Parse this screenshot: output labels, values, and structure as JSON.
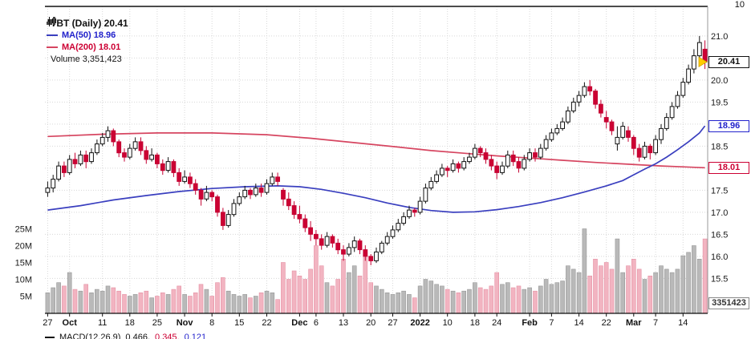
{
  "legend": {
    "symbol_label": "TBT (Daily) 20.41",
    "ma50_label": "MA(50) 18.96",
    "ma200_label": "MA(200) 18.01",
    "volume_label": "Volume 3,351,423"
  },
  "axes": {
    "top_partial_label": "10",
    "badges": {
      "last_price": "20.41",
      "ma50": "18.96",
      "ma200": "18.01",
      "volume": "3351423"
    }
  },
  "footer": {
    "label": "MACD(12,26,9)",
    "v1": "0.466,",
    "v2": "0.345,",
    "v3": "0.121"
  },
  "chart_data": {
    "type": "candlestick",
    "title": "TBT (Daily)",
    "symbol": "TBT",
    "timeframe": "Daily",
    "last_price": 20.41,
    "ma50": 18.96,
    "ma200": 18.01,
    "volume": 3351423,
    "legend_position": "top-left",
    "grid": true,
    "price_axis": {
      "min": 15.5,
      "max": 21.0,
      "step": 0.5,
      "visible_labels": [
        {
          "v": 21.0,
          "t": "21.0"
        },
        {
          "v": 20.0,
          "t": "20.0"
        },
        {
          "v": 19.5,
          "t": "19.5"
        },
        {
          "v": 18.5,
          "t": "18.5"
        },
        {
          "v": 17.5,
          "t": "17.5"
        },
        {
          "v": 17.0,
          "t": "17.0"
        },
        {
          "v": 16.5,
          "t": "16.5"
        },
        {
          "v": 16.0,
          "t": "16.0"
        },
        {
          "v": 15.5,
          "t": "15.5"
        }
      ]
    },
    "volume_axis": {
      "unit": "M",
      "ticks": [
        {
          "v": 25,
          "t": "25M"
        },
        {
          "v": 20,
          "t": "20M"
        },
        {
          "v": 15,
          "t": "15M"
        },
        {
          "v": 10,
          "t": "10M"
        },
        {
          "v": 5,
          "t": "5M"
        }
      ]
    },
    "x_ticks": [
      {
        "i": 0,
        "label": "27",
        "bold": false
      },
      {
        "i": 4,
        "label": "Oct",
        "bold": true
      },
      {
        "i": 10,
        "label": "11",
        "bold": false
      },
      {
        "i": 15,
        "label": "18",
        "bold": false
      },
      {
        "i": 20,
        "label": "25",
        "bold": false
      },
      {
        "i": 25,
        "label": "Nov",
        "bold": true
      },
      {
        "i": 30,
        "label": "8",
        "bold": false
      },
      {
        "i": 35,
        "label": "15",
        "bold": false
      },
      {
        "i": 40,
        "label": "22",
        "bold": false
      },
      {
        "i": 46,
        "label": "Dec",
        "bold": true
      },
      {
        "i": 49,
        "label": "6",
        "bold": false
      },
      {
        "i": 54,
        "label": "13",
        "bold": false
      },
      {
        "i": 59,
        "label": "20",
        "bold": false
      },
      {
        "i": 63,
        "label": "27",
        "bold": false
      },
      {
        "i": 68,
        "label": "2022",
        "bold": true
      },
      {
        "i": 73,
        "label": "10",
        "bold": false
      },
      {
        "i": 78,
        "label": "18",
        "bold": false
      },
      {
        "i": 82,
        "label": "24",
        "bold": false
      },
      {
        "i": 88,
        "label": "Feb",
        "bold": true
      },
      {
        "i": 92,
        "label": "7",
        "bold": false
      },
      {
        "i": 97,
        "label": "14",
        "bold": false
      },
      {
        "i": 102,
        "label": "22",
        "bold": false
      },
      {
        "i": 107,
        "label": "Mar",
        "bold": true
      },
      {
        "i": 111,
        "label": "7",
        "bold": false
      },
      {
        "i": 116,
        "label": "14",
        "bold": false
      }
    ],
    "candles": [
      [
        17.45,
        17.7,
        17.35,
        17.55,
        6
      ],
      [
        17.55,
        17.85,
        17.45,
        17.75,
        7.5
      ],
      [
        17.75,
        18.15,
        17.7,
        18.05,
        9
      ],
      [
        18.05,
        18.15,
        17.8,
        17.9,
        8
      ],
      [
        17.9,
        18.3,
        17.85,
        18.2,
        12
      ],
      [
        18.2,
        18.35,
        18,
        18.1,
        7
      ],
      [
        18.1,
        18.4,
        18.05,
        18.3,
        6.5
      ],
      [
        18.3,
        18.4,
        18,
        18.15,
        8.5
      ],
      [
        18.15,
        18.45,
        18.1,
        18.35,
        6
      ],
      [
        18.35,
        18.65,
        18.3,
        18.55,
        7
      ],
      [
        18.55,
        18.8,
        18.5,
        18.7,
        6.5
      ],
      [
        18.7,
        18.95,
        18.6,
        18.85,
        8
      ],
      [
        18.85,
        18.9,
        18.5,
        18.6,
        7.5
      ],
      [
        18.6,
        18.65,
        18.25,
        18.35,
        6.5
      ],
      [
        18.35,
        18.45,
        18.15,
        18.25,
        5.5
      ],
      [
        18.25,
        18.55,
        18.2,
        18.45,
        5
      ],
      [
        18.45,
        18.7,
        18.4,
        18.6,
        5.5
      ],
      [
        18.6,
        18.7,
        18.3,
        18.4,
        6
      ],
      [
        18.4,
        18.5,
        18.1,
        18.2,
        6.5
      ],
      [
        18.2,
        18.45,
        18.15,
        18.3,
        4.5
      ],
      [
        18.3,
        18.35,
        18,
        18.1,
        5
      ],
      [
        18.1,
        18.2,
        17.85,
        17.95,
        6
      ],
      [
        17.95,
        18.25,
        17.9,
        18.15,
        5.5
      ],
      [
        18.15,
        18.2,
        17.8,
        17.9,
        7
      ],
      [
        17.9,
        18,
        17.6,
        17.7,
        8
      ],
      [
        17.7,
        17.95,
        17.65,
        17.8,
        5.5
      ],
      [
        17.8,
        17.9,
        17.55,
        17.65,
        5
      ],
      [
        17.65,
        17.75,
        17.4,
        17.5,
        6
      ],
      [
        17.5,
        17.55,
        17.15,
        17.3,
        8.5
      ],
      [
        17.3,
        17.6,
        17.25,
        17.45,
        7
      ],
      [
        17.45,
        17.5,
        17.25,
        17.35,
        5
      ],
      [
        17.35,
        17.4,
        16.9,
        17,
        9
      ],
      [
        17,
        17.1,
        16.6,
        16.7,
        10.5
      ],
      [
        16.7,
        17.05,
        16.65,
        16.95,
        6.5
      ],
      [
        16.95,
        17.3,
        16.9,
        17.2,
        5.5
      ],
      [
        17.2,
        17.45,
        17.15,
        17.35,
        5
      ],
      [
        17.35,
        17.6,
        17.3,
        17.5,
        5.5
      ],
      [
        17.5,
        17.55,
        17.3,
        17.4,
        4.5
      ],
      [
        17.4,
        17.65,
        17.35,
        17.55,
        5
      ],
      [
        17.55,
        17.65,
        17.35,
        17.45,
        6
      ],
      [
        17.45,
        17.75,
        17.4,
        17.65,
        6.5
      ],
      [
        17.65,
        17.9,
        17.6,
        17.8,
        6
      ],
      [
        17.8,
        17.9,
        17.6,
        17.7,
        4
      ],
      [
        17.5,
        17.55,
        17.15,
        17.3,
        15
      ],
      [
        17.3,
        17.45,
        17.05,
        17.15,
        10
      ],
      [
        17.15,
        17.25,
        16.85,
        16.95,
        12.5
      ],
      [
        16.95,
        17.15,
        16.75,
        16.85,
        11
      ],
      [
        16.85,
        16.95,
        16.55,
        16.65,
        10
      ],
      [
        16.65,
        16.8,
        16.35,
        16.5,
        13
      ],
      [
        16.5,
        16.6,
        16.25,
        16.4,
        20
      ],
      [
        16.4,
        16.5,
        16.15,
        16.25,
        14
      ],
      [
        16.25,
        16.55,
        16.2,
        16.45,
        9
      ],
      [
        16.45,
        16.5,
        16.2,
        16.3,
        8
      ],
      [
        16.3,
        16.4,
        16.05,
        16.15,
        10
      ],
      [
        16.15,
        16.25,
        15.9,
        16.05,
        16
      ],
      [
        16.05,
        16.3,
        16,
        16.2,
        12
      ],
      [
        16.2,
        16.45,
        16.1,
        16.35,
        14
      ],
      [
        16.35,
        16.4,
        16.05,
        16.15,
        11
      ],
      [
        16.15,
        16.25,
        15.9,
        16,
        18
      ],
      [
        16,
        16.05,
        15.8,
        15.9,
        9
      ],
      [
        15.9,
        16.2,
        15.85,
        16.1,
        8
      ],
      [
        16.1,
        16.35,
        16.05,
        16.3,
        7
      ],
      [
        16.3,
        16.55,
        16.25,
        16.45,
        6
      ],
      [
        16.45,
        16.7,
        16.4,
        16.6,
        5.5
      ],
      [
        16.6,
        16.85,
        16.55,
        16.75,
        6
      ],
      [
        16.75,
        17,
        16.7,
        16.9,
        6.5
      ],
      [
        16.9,
        17.15,
        16.85,
        17.05,
        5.5
      ],
      [
        17.05,
        17.1,
        16.9,
        17,
        4.5
      ],
      [
        17,
        17.35,
        16.95,
        17.25,
        8
      ],
      [
        17.25,
        17.65,
        17.2,
        17.55,
        10
      ],
      [
        17.55,
        17.8,
        17.5,
        17.7,
        9.5
      ],
      [
        17.7,
        17.95,
        17.65,
        17.85,
        8.5
      ],
      [
        17.85,
        18.1,
        17.8,
        18,
        8
      ],
      [
        18,
        18.05,
        17.8,
        17.95,
        7
      ],
      [
        17.95,
        18.2,
        17.9,
        18.1,
        6.5
      ],
      [
        18.1,
        18.15,
        17.9,
        18,
        6
      ],
      [
        18,
        18.25,
        17.95,
        18.15,
        6.5
      ],
      [
        18.15,
        18.35,
        18.1,
        18.25,
        7
      ],
      [
        18.25,
        18.55,
        18.2,
        18.45,
        9
      ],
      [
        18.45,
        18.5,
        18.25,
        18.35,
        7.5
      ],
      [
        18.35,
        18.45,
        18.1,
        18.2,
        7
      ],
      [
        18.2,
        18.3,
        17.95,
        18.05,
        8
      ],
      [
        18.05,
        18.15,
        17.75,
        17.9,
        12
      ],
      [
        17.9,
        18.15,
        17.85,
        18.05,
        8.5
      ],
      [
        18.05,
        18.4,
        18,
        18.3,
        9
      ],
      [
        18.3,
        18.4,
        18.05,
        18.15,
        7.5
      ],
      [
        18.15,
        18.25,
        17.9,
        18,
        8
      ],
      [
        18,
        18.3,
        17.95,
        18.2,
        7
      ],
      [
        18.2,
        18.45,
        18.15,
        18.35,
        7.5
      ],
      [
        18.35,
        18.45,
        18.15,
        18.25,
        6.5
      ],
      [
        18.25,
        18.55,
        18.2,
        18.45,
        8
      ],
      [
        18.45,
        18.75,
        18.4,
        18.65,
        10
      ],
      [
        18.65,
        18.9,
        18.6,
        18.8,
        8.5
      ],
      [
        18.8,
        19,
        18.75,
        18.9,
        9
      ],
      [
        18.9,
        19.15,
        18.85,
        19.05,
        9.5
      ],
      [
        19.05,
        19.4,
        19,
        19.3,
        14
      ],
      [
        19.3,
        19.6,
        19.25,
        19.5,
        13
      ],
      [
        19.5,
        19.75,
        19.4,
        19.65,
        12
      ],
      [
        19.65,
        19.95,
        19.6,
        19.85,
        25
      ],
      [
        19.85,
        20,
        19.65,
        19.75,
        11
      ],
      [
        19.75,
        19.8,
        19.35,
        19.45,
        16
      ],
      [
        19.45,
        19.55,
        19.15,
        19.25,
        14
      ],
      [
        19.15,
        19.3,
        18.9,
        19.05,
        15
      ],
      [
        19.05,
        19.1,
        18.75,
        18.85,
        13
      ],
      [
        18.55,
        18.95,
        18.4,
        18.7,
        22
      ],
      [
        18.7,
        19.05,
        18.65,
        18.95,
        12
      ],
      [
        18.85,
        18.95,
        18.6,
        18.7,
        14
      ],
      [
        18.7,
        18.75,
        18.3,
        18.45,
        16
      ],
      [
        18.45,
        18.55,
        18.15,
        18.25,
        13
      ],
      [
        18.25,
        18.6,
        18.2,
        18.5,
        10
      ],
      [
        18.5,
        18.55,
        18.2,
        18.35,
        11
      ],
      [
        18.35,
        18.75,
        18.3,
        18.65,
        12
      ],
      [
        18.65,
        19,
        18.55,
        18.9,
        14
      ],
      [
        18.9,
        19.25,
        18.85,
        19.15,
        13
      ],
      [
        19.15,
        19.5,
        19.1,
        19.4,
        12
      ],
      [
        19.4,
        19.75,
        19.35,
        19.65,
        13
      ],
      [
        19.65,
        20.05,
        19.6,
        19.95,
        17
      ],
      [
        19.95,
        20.35,
        19.9,
        20.25,
        18
      ],
      [
        20.25,
        20.7,
        20.15,
        20.55,
        20
      ],
      [
        20.55,
        21,
        20.45,
        20.85,
        16
      ],
      [
        20.7,
        20.9,
        20.25,
        20.41,
        22
      ]
    ],
    "ma50_points": [
      [
        0,
        17.05
      ],
      [
        6,
        17.15
      ],
      [
        12,
        17.28
      ],
      [
        18,
        17.38
      ],
      [
        24,
        17.47
      ],
      [
        30,
        17.54
      ],
      [
        36,
        17.58
      ],
      [
        42,
        17.6
      ],
      [
        46,
        17.58
      ],
      [
        50,
        17.52
      ],
      [
        54,
        17.43
      ],
      [
        58,
        17.33
      ],
      [
        62,
        17.21
      ],
      [
        66,
        17.11
      ],
      [
        70,
        17.04
      ],
      [
        74,
        17.0
      ],
      [
        78,
        17.01
      ],
      [
        82,
        17.06
      ],
      [
        86,
        17.13
      ],
      [
        90,
        17.22
      ],
      [
        94,
        17.33
      ],
      [
        98,
        17.46
      ],
      [
        102,
        17.6
      ],
      [
        105,
        17.72
      ],
      [
        107,
        17.85
      ],
      [
        109,
        17.98
      ],
      [
        111,
        18.1
      ],
      [
        113,
        18.25
      ],
      [
        115,
        18.42
      ],
      [
        117,
        18.6
      ],
      [
        119,
        18.8
      ],
      [
        120,
        18.96
      ]
    ],
    "ma200_points": [
      [
        0,
        18.72
      ],
      [
        10,
        18.77
      ],
      [
        20,
        18.8
      ],
      [
        30,
        18.8
      ],
      [
        40,
        18.76
      ],
      [
        48,
        18.68
      ],
      [
        56,
        18.58
      ],
      [
        64,
        18.48
      ],
      [
        70,
        18.4
      ],
      [
        76,
        18.34
      ],
      [
        82,
        18.28
      ],
      [
        88,
        18.23
      ],
      [
        94,
        18.18
      ],
      [
        100,
        18.13
      ],
      [
        106,
        18.09
      ],
      [
        112,
        18.05
      ],
      [
        116,
        18.03
      ],
      [
        120,
        18.01
      ]
    ],
    "colors": {
      "up": "#111111",
      "up_fill": "#ffffff",
      "down": "#c40233",
      "down_fill": "#cc0233",
      "ma50": "#3a3fbf",
      "ma200": "#d64560",
      "legend_blue": "#2222cc",
      "legend_red": "#cc0033",
      "vol_up": "#b9b9b9",
      "vol_up_edge": "#979797",
      "vol_down": "#f2b4c1",
      "vol_down_edge": "#e590a3",
      "grid": "#d8d8d8",
      "axis_text": "#1a1a1a",
      "marker": "#ffcc00"
    }
  }
}
